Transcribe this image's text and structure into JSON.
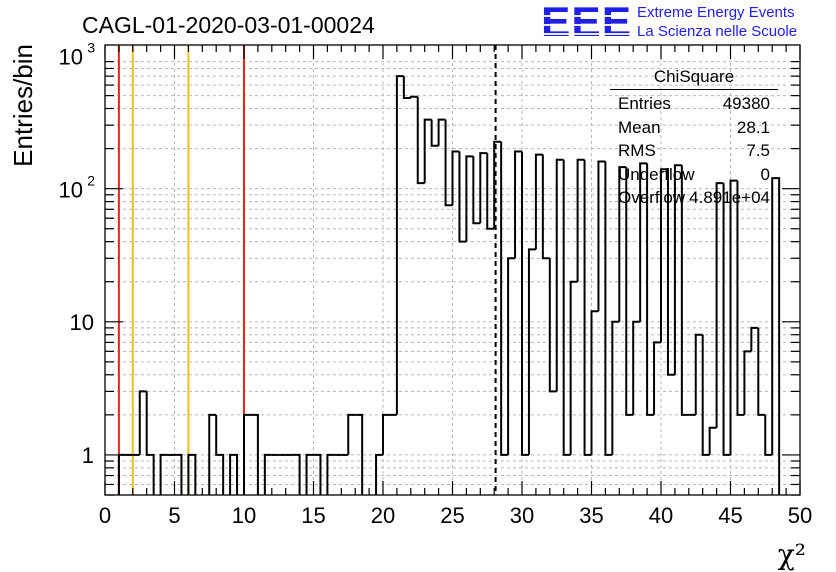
{
  "title": "CAGL-01-2020-03-01-00024",
  "logo": {
    "mark": "EEE",
    "line1": "Extreme Energy Events",
    "line2": "La Scienza nelle Scuole",
    "color": "#1f1fe6"
  },
  "stats": {
    "title": "ChiSquare",
    "rows": [
      {
        "label": "Entries",
        "value": "49380"
      },
      {
        "label": "Mean",
        "value": "28.1"
      },
      {
        "label": "RMS",
        "value": "7.5"
      },
      {
        "label": "Underflow",
        "value": "0"
      },
      {
        "label": "Overflow",
        "value": "4.891e+04"
      }
    ]
  },
  "chart_data": {
    "type": "histogram",
    "title": "CAGL-01-2020-03-01-00024",
    "xlabel": "χ²",
    "ylabel": "Entries/bin",
    "xlim": [
      0,
      50
    ],
    "ylim": [
      0.5,
      1200
    ],
    "yscale": "log",
    "grid": true,
    "bin_width": 0.5,
    "x_ticks": [
      "0",
      "5",
      "10",
      "15",
      "20",
      "25",
      "30",
      "35",
      "40",
      "45",
      "50"
    ],
    "y_ticks": [
      {
        "value": 1,
        "label": "1"
      },
      {
        "value": 10,
        "label": "10"
      },
      {
        "value": 100,
        "label": "10^2"
      },
      {
        "value": 1000,
        "label": "10^3"
      }
    ],
    "bins": [
      {
        "x": 1.0,
        "value": 1
      },
      {
        "x": 1.5,
        "value": 1
      },
      {
        "x": 2.0,
        "value": 1
      },
      {
        "x": 2.5,
        "value": 3
      },
      {
        "x": 3.0,
        "value": 1
      },
      {
        "x": 4.0,
        "value": 1
      },
      {
        "x": 4.5,
        "value": 1
      },
      {
        "x": 5.0,
        "value": 1
      },
      {
        "x": 6.0,
        "value": 1
      },
      {
        "x": 7.5,
        "value": 2
      },
      {
        "x": 8.0,
        "value": 1
      },
      {
        "x": 9.0,
        "value": 1
      },
      {
        "x": 10.0,
        "value": 2
      },
      {
        "x": 10.5,
        "value": 2
      },
      {
        "x": 11.5,
        "value": 1
      },
      {
        "x": 12.0,
        "value": 1
      },
      {
        "x": 12.5,
        "value": 1
      },
      {
        "x": 13.0,
        "value": 1
      },
      {
        "x": 13.5,
        "value": 1
      },
      {
        "x": 14.5,
        "value": 1
      },
      {
        "x": 15.0,
        "value": 1
      },
      {
        "x": 16.0,
        "value": 1
      },
      {
        "x": 16.5,
        "value": 1
      },
      {
        "x": 17.0,
        "value": 1
      },
      {
        "x": 17.5,
        "value": 2
      },
      {
        "x": 18.0,
        "value": 2
      },
      {
        "x": 19.5,
        "value": 1
      },
      {
        "x": 20.0,
        "value": 2
      },
      {
        "x": 20.5,
        "value": 2
      },
      {
        "x": 21.0,
        "value": 700
      },
      {
        "x": 21.5,
        "value": 480
      },
      {
        "x": 22.0,
        "value": 490
      },
      {
        "x": 22.5,
        "value": 110
      },
      {
        "x": 23.0,
        "value": 330
      },
      {
        "x": 23.5,
        "value": 210
      },
      {
        "x": 24.0,
        "value": 330
      },
      {
        "x": 24.5,
        "value": 75
      },
      {
        "x": 25.0,
        "value": 190
      },
      {
        "x": 25.5,
        "value": 40
      },
      {
        "x": 26.0,
        "value": 175
      },
      {
        "x": 26.5,
        "value": 55
      },
      {
        "x": 27.0,
        "value": 185
      },
      {
        "x": 27.5,
        "value": 50
      },
      {
        "x": 28.0,
        "value": 225
      },
      {
        "x": 28.5,
        "value": 1
      },
      {
        "x": 29.0,
        "value": 30
      },
      {
        "x": 29.5,
        "value": 190
      },
      {
        "x": 30.0,
        "value": 1
      },
      {
        "x": 30.5,
        "value": 35
      },
      {
        "x": 31.0,
        "value": 180
      },
      {
        "x": 31.5,
        "value": 30
      },
      {
        "x": 32.0,
        "value": 3
      },
      {
        "x": 32.5,
        "value": 165
      },
      {
        "x": 33.0,
        "value": 1
      },
      {
        "x": 33.5,
        "value": 20
      },
      {
        "x": 34.0,
        "value": 165
      },
      {
        "x": 34.5,
        "value": 1
      },
      {
        "x": 35.0,
        "value": 12
      },
      {
        "x": 35.5,
        "value": 160
      },
      {
        "x": 36.0,
        "value": 1
      },
      {
        "x": 36.5,
        "value": 10
      },
      {
        "x": 37.0,
        "value": 145
      },
      {
        "x": 37.5,
        "value": 2
      },
      {
        "x": 38.0,
        "value": 10
      },
      {
        "x": 38.5,
        "value": 155
      },
      {
        "x": 39.0,
        "value": 2
      },
      {
        "x": 39.5,
        "value": 7
      },
      {
        "x": 40.0,
        "value": 140
      },
      {
        "x": 40.5,
        "value": 4
      },
      {
        "x": 41.0,
        "value": 150
      },
      {
        "x": 41.5,
        "value": 2
      },
      {
        "x": 42.0,
        "value": 2
      },
      {
        "x": 42.5,
        "value": 8
      },
      {
        "x": 43.0,
        "value": 1
      },
      {
        "x": 43.5,
        "value": 1.6
      },
      {
        "x": 44.0,
        "value": 110
      },
      {
        "x": 44.5,
        "value": 1
      },
      {
        "x": 45.0,
        "value": 115
      },
      {
        "x": 45.5,
        "value": 2
      },
      {
        "x": 46.0,
        "value": 6
      },
      {
        "x": 46.5,
        "value": 9
      },
      {
        "x": 47.0,
        "value": 2
      },
      {
        "x": 47.5,
        "value": 1
      },
      {
        "x": 48.0,
        "value": 120
      }
    ],
    "vertical_lines": [
      {
        "x": 1,
        "color": "#e8261c",
        "style": "solid"
      },
      {
        "x": 2,
        "color": "#f2c21a",
        "style": "solid"
      },
      {
        "x": 6,
        "color": "#f2c21a",
        "style": "solid"
      },
      {
        "x": 10,
        "color": "#e8261c",
        "style": "solid"
      },
      {
        "x": 28.1,
        "color": "#000000",
        "style": "dashed"
      }
    ]
  }
}
